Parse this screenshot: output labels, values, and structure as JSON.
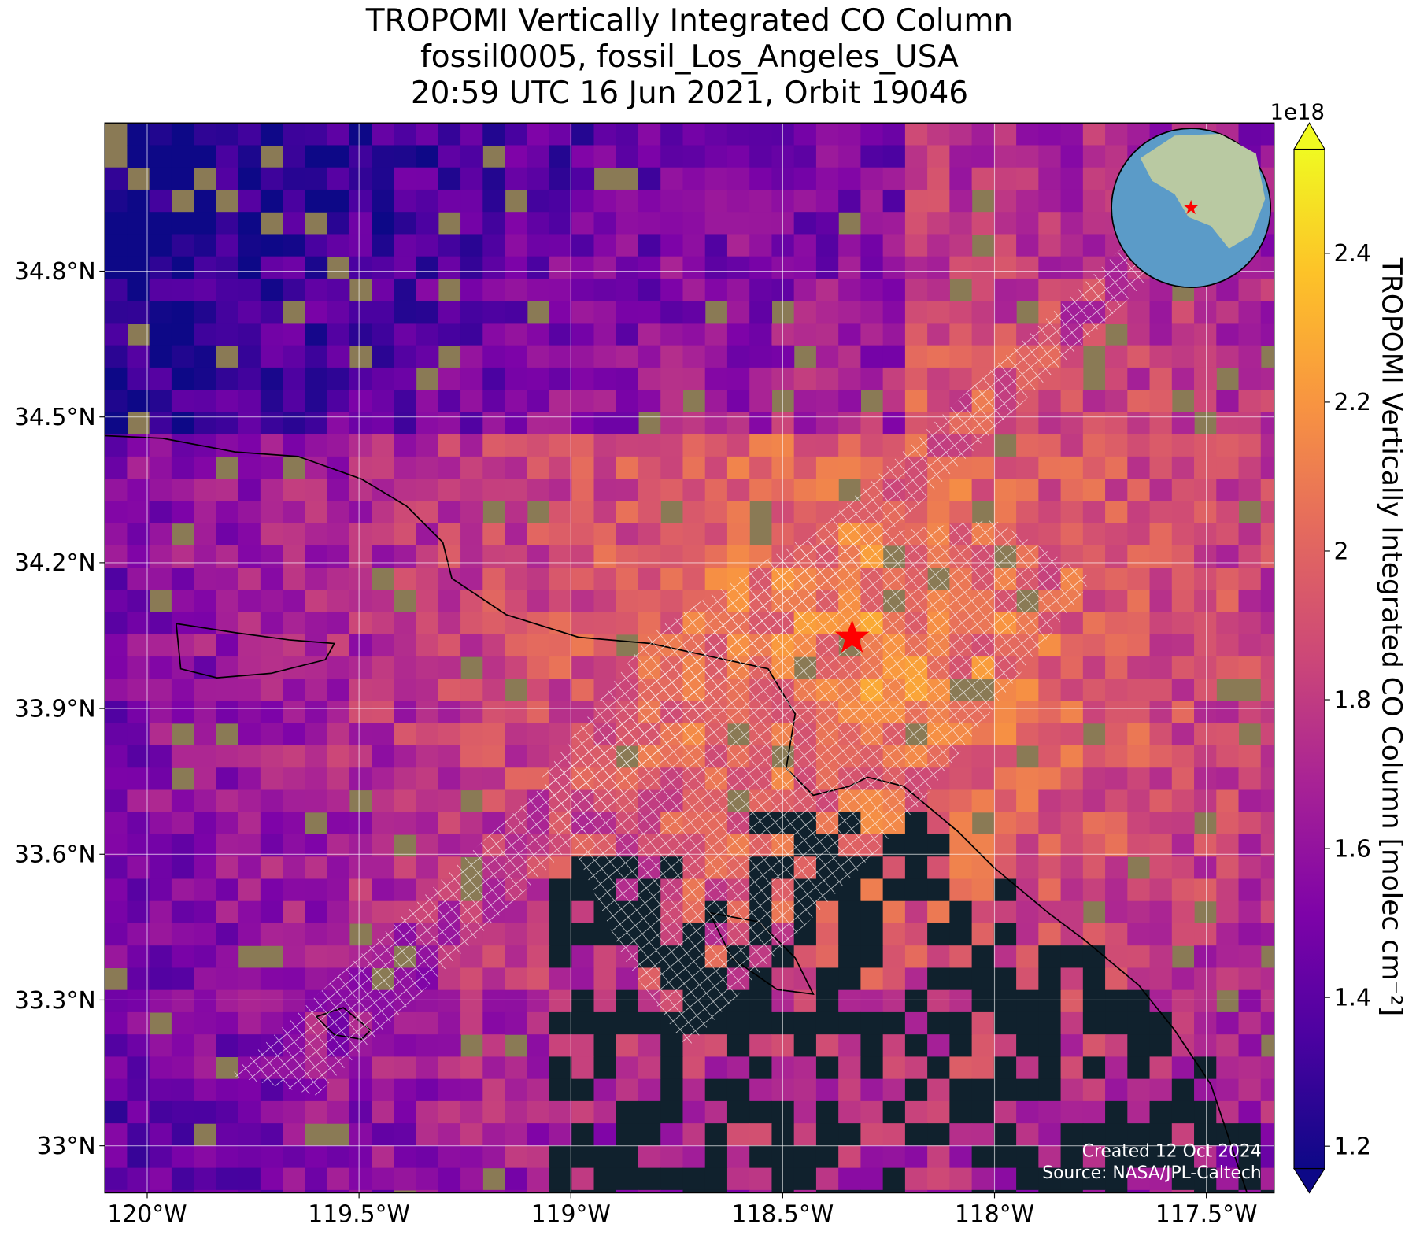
{
  "chart_data": {
    "type": "map",
    "title": [
      "TROPOMI Vertically Integrated CO Column",
      "fossil0005, fossil_Los_Angeles_USA",
      "20:59 UTC 16 Jun 2021, Orbit 19046"
    ],
    "xlim": [
      -120.1,
      -117.34
    ],
    "ylim": [
      32.903,
      35.105
    ],
    "xticks": [
      {
        "value": -120,
        "label": "120°W"
      },
      {
        "value": -119.5,
        "label": "119.5°W"
      },
      {
        "value": -119,
        "label": "119°W"
      },
      {
        "value": -118.5,
        "label": "118.5°W"
      },
      {
        "value": -118,
        "label": "118°W"
      },
      {
        "value": -117.5,
        "label": "117.5°W"
      }
    ],
    "yticks": [
      {
        "value": 33,
        "label": "33°N"
      },
      {
        "value": 33.3,
        "label": "33.3°N"
      },
      {
        "value": 33.6,
        "label": "33.6°N"
      },
      {
        "value": 33.9,
        "label": "33.9°N"
      },
      {
        "value": 34.2,
        "label": "34.2°N"
      },
      {
        "value": 34.5,
        "label": "34.5°N"
      },
      {
        "value": 34.8,
        "label": "34.8°N"
      }
    ],
    "grid": true,
    "colorbar": {
      "label": "TROPOMI Vertically Integrated CO Column [molec cm⁻²]",
      "offset_label": "1e18",
      "lim": [
        1.17,
        2.54
      ],
      "ticks": [
        1.2,
        1.4,
        1.6,
        1.8,
        2.0,
        2.2,
        2.4
      ]
    },
    "credits": [
      "Created 12 Oct 2024",
      "Source: NASA/JPL-Caltech"
    ]
  }
}
